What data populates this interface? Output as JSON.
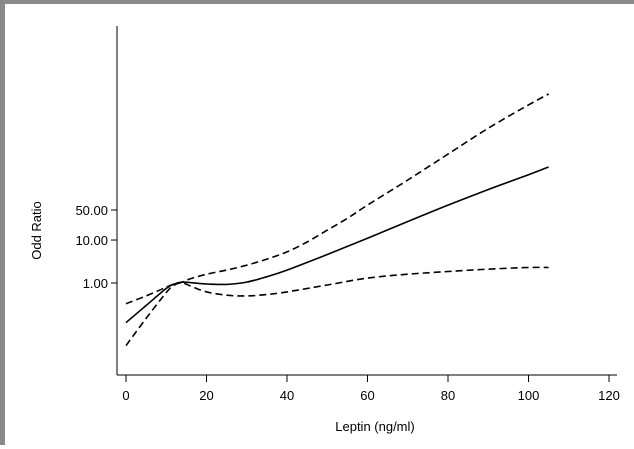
{
  "chart_data": {
    "type": "line",
    "title": "",
    "xlabel": "Leptin (ng/ml)",
    "ylabel": "Odd Ratio",
    "xlim": [
      0,
      120
    ],
    "x_ticks": [
      0,
      20,
      40,
      60,
      80,
      100,
      120
    ],
    "x_tick_labels": [
      "0",
      "20",
      "40",
      "60",
      "80",
      "100",
      "120"
    ],
    "y_scale": "log",
    "ylim": [
      0.022,
      30000
    ],
    "y_ticks": [
      1,
      10,
      50
    ],
    "y_tick_labels": [
      "1.00",
      "10.00",
      "50.00"
    ],
    "grid": false,
    "legend": "none",
    "series": [
      {
        "style": "solid",
        "x": [
          0,
          5,
          10,
          12,
          14,
          16,
          20,
          25,
          30,
          35,
          40,
          50,
          60,
          70,
          80,
          90,
          100,
          105
        ],
        "values": [
          0.12,
          0.3,
          0.75,
          0.95,
          1.05,
          1.02,
          0.95,
          0.93,
          1.05,
          1.4,
          2.0,
          4.6,
          11,
          27,
          65,
          150,
          330,
          500
        ]
      },
      {
        "style": "dashed",
        "x": [
          0,
          5,
          10,
          12,
          14,
          16,
          20,
          25,
          30,
          35,
          40,
          45,
          50,
          55,
          60,
          70,
          80,
          90,
          100,
          105
        ],
        "values": [
          0.33,
          0.5,
          0.8,
          0.95,
          1.05,
          1.25,
          1.6,
          2.0,
          2.6,
          3.6,
          5.3,
          9,
          17,
          32,
          65,
          250,
          1000,
          4000,
          14000,
          25000
        ]
      },
      {
        "style": "dashed",
        "x": [
          0,
          5,
          10,
          12,
          14,
          16,
          20,
          25,
          30,
          35,
          40,
          50,
          60,
          70,
          80,
          90,
          100,
          105
        ],
        "values": [
          0.035,
          0.15,
          0.6,
          0.9,
          1.0,
          0.85,
          0.62,
          0.52,
          0.5,
          0.54,
          0.62,
          0.9,
          1.3,
          1.6,
          1.85,
          2.1,
          2.3,
          2.3
        ]
      }
    ]
  }
}
